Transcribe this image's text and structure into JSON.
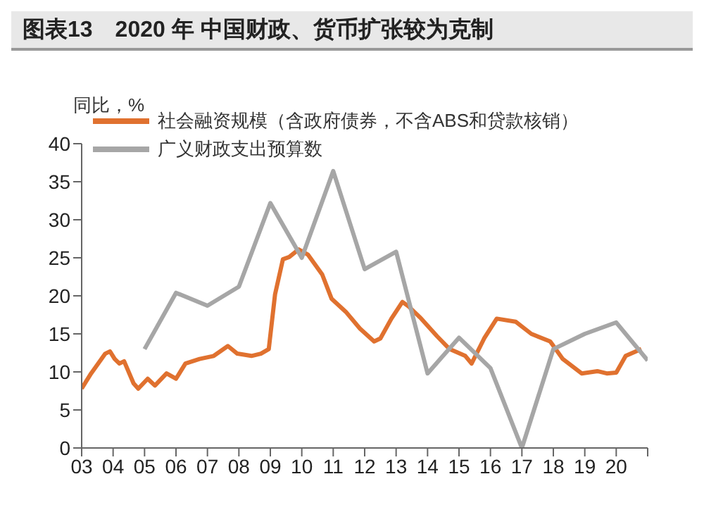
{
  "chart_data": {
    "type": "line",
    "title": "图表13　2020 年 中国财政、货币扩张较为克制",
    "ylabel": "同比，%",
    "legend": "top left",
    "marker": "none",
    "line_style": "solid",
    "xlim": [
      2003,
      2021
    ],
    "xticks": [
      {
        "value": 2003,
        "label": "03"
      },
      {
        "value": 2004,
        "label": "04"
      },
      {
        "value": 2005,
        "label": "05"
      },
      {
        "value": 2006,
        "label": "06"
      },
      {
        "value": 2007,
        "label": "07"
      },
      {
        "value": 2008,
        "label": "08"
      },
      {
        "value": 2009,
        "label": "09"
      },
      {
        "value": 2010,
        "label": "10"
      },
      {
        "value": 2011,
        "label": "11"
      },
      {
        "value": 2012,
        "label": "12"
      },
      {
        "value": 2013,
        "label": "13"
      },
      {
        "value": 2014,
        "label": "14"
      },
      {
        "value": 2015,
        "label": "15"
      },
      {
        "value": 2016,
        "label": "16"
      },
      {
        "value": 2017,
        "label": "17"
      },
      {
        "value": 2018,
        "label": "18"
      },
      {
        "value": 2019,
        "label": "19"
      },
      {
        "value": 2020,
        "label": "20"
      },
      {
        "value": 2021,
        "label": null
      }
    ],
    "ylim": [
      0,
      40
    ],
    "yticks": [
      0,
      5,
      10,
      15,
      20,
      25,
      30,
      35,
      40
    ],
    "series": [
      {
        "name": "社会融资规模（含政府债券，不含ABS和贷款核销）",
        "color": "#e0712f",
        "x": [
          2003.0,
          2003.3,
          2003.75,
          2003.9,
          2004.05,
          2004.2,
          2004.35,
          2004.65,
          2004.8,
          2005.1,
          2005.33,
          2005.7,
          2006.0,
          2006.3,
          2006.75,
          2007.2,
          2007.65,
          2007.95,
          2008.4,
          2008.7,
          2008.95,
          2009.15,
          2009.4,
          2009.6,
          2009.9,
          2010.2,
          2010.65,
          2010.95,
          2011.4,
          2011.85,
          2012.3,
          2012.5,
          2012.85,
          2013.2,
          2013.4,
          2013.8,
          2014.3,
          2014.7,
          2015.2,
          2015.4,
          2015.8,
          2016.2,
          2016.8,
          2017.3,
          2017.9,
          2018.3,
          2018.9,
          2019.4,
          2019.7,
          2020.0,
          2020.3,
          2020.8
        ],
        "values": [
          7.8,
          9.8,
          12.4,
          12.7,
          11.7,
          11.1,
          11.4,
          8.5,
          7.8,
          9.1,
          8.2,
          9.8,
          9.1,
          11.1,
          11.7,
          12.1,
          13.4,
          12.4,
          12.1,
          12.4,
          13.0,
          20.2,
          24.8,
          25.1,
          26.1,
          25.4,
          22.8,
          19.6,
          17.9,
          15.7,
          14.0,
          14.4,
          17.0,
          19.2,
          18.6,
          17.0,
          14.7,
          13.0,
          12.1,
          11.1,
          14.4,
          17.0,
          16.6,
          15.0,
          14.0,
          11.7,
          9.8,
          10.1,
          9.8,
          9.9,
          12.1,
          13.0
        ]
      },
      {
        "name": "广义财政支出预算数",
        "color": "#a6a6a6",
        "x": [
          2005,
          2006,
          2007,
          2008,
          2009,
          2010,
          2011,
          2012,
          2013,
          2014,
          2015,
          2016,
          2017,
          2018,
          2019,
          2020,
          2021
        ],
        "values": [
          13.0,
          20.4,
          18.7,
          21.2,
          32.2,
          25.0,
          36.4,
          23.5,
          25.8,
          9.8,
          14.5,
          10.5,
          0,
          13.0,
          15.0,
          16.5,
          11.5
        ]
      }
    ]
  }
}
